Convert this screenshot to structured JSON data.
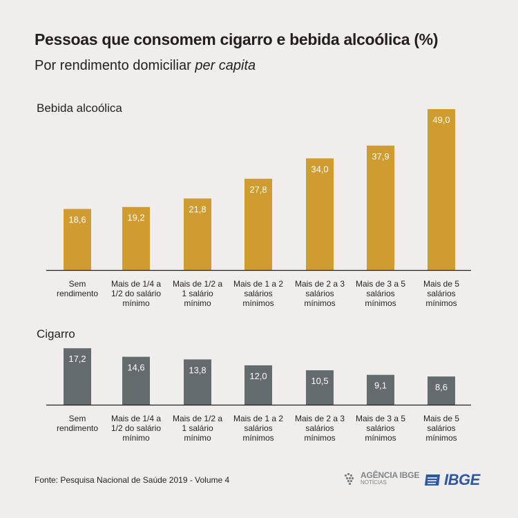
{
  "title": "Pessoas que consomem cigarro e bebida alcoólica (%)",
  "subtitle": {
    "prefix": "Por rendimento domiciliar ",
    "emphasis": "per capita"
  },
  "footer": {
    "source": "Fonte: Pesquisa Nacional de Saúde 2019 - Volume 4"
  },
  "logos": {
    "agencia_line1": "AGÊNCIA IBGE",
    "agencia_line2": "NOTÍCIAS",
    "ibge": "IBGE"
  },
  "colors": {
    "bebida": "#d09c2f",
    "cigarro": "#636b6d",
    "axis": "#231f20",
    "bar_label": "#ffffff"
  },
  "chart_data": [
    {
      "type": "bar",
      "title": "Bebida alcoólica",
      "categories": [
        [
          "Sem",
          "rendimento"
        ],
        [
          "Mais de 1/4 a",
          "1/2 do salário",
          "mínimo"
        ],
        [
          "Mais de 1/2 a",
          "1 salário",
          "mínimo"
        ],
        [
          "Mais de 1 a 2",
          "salários",
          "mínimos"
        ],
        [
          "Mais de 2 a 3",
          "salários",
          "mínimos"
        ],
        [
          "Mais de 3 a 5",
          "salários",
          "mínimos"
        ],
        [
          "Mais de 5",
          "salários",
          "mínimos"
        ]
      ],
      "values": [
        18.6,
        19.2,
        21.8,
        27.8,
        34.0,
        37.9,
        49.0
      ],
      "value_labels": [
        "18,6",
        "19,2",
        "21,8",
        "27,8",
        "34,0",
        "37,9",
        "49,0"
      ],
      "color": "#d09c2f",
      "ylim": [
        0,
        49
      ],
      "grid": false
    },
    {
      "type": "bar",
      "title": "Cigarro",
      "categories": [
        [
          "Sem",
          "rendimento"
        ],
        [
          "Mais de 1/4 a",
          "1/2 do salário",
          "mínimo"
        ],
        [
          "Mais de 1/2 a",
          "1 salário",
          "mínimo"
        ],
        [
          "Mais de 1 a 2",
          "salários",
          "mínimos"
        ],
        [
          "Mais de 2 a 3",
          "salários",
          "mínimos"
        ],
        [
          "Mais de 3 a 5",
          "salários",
          "mínimos"
        ],
        [
          "Mais de 5",
          "salários",
          "mínimos"
        ]
      ],
      "values": [
        17.2,
        14.6,
        13.8,
        12.0,
        10.5,
        9.1,
        8.6
      ],
      "value_labels": [
        "17,2",
        "14,6",
        "13,8",
        "12,0",
        "10,5",
        "9,1",
        "8,6"
      ],
      "color": "#636b6d",
      "ylim": [
        0,
        49
      ],
      "grid": false
    }
  ]
}
